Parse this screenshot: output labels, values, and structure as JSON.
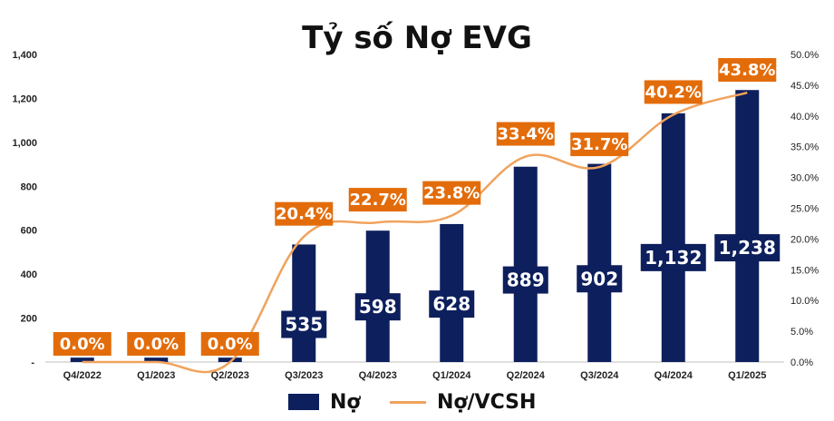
{
  "chart_data": {
    "type": "bar+line",
    "title": "Tỷ số Nợ EVG",
    "categories": [
      "Q4/2022",
      "Q1/2023",
      "Q2/2023",
      "Q3/2023",
      "Q4/2023",
      "Q1/2024",
      "Q2/2024",
      "Q3/2024",
      "Q4/2024",
      "Q1/2025"
    ],
    "series": [
      {
        "name": "Nợ",
        "type": "bar",
        "axis": "left",
        "values": [
          20,
          20,
          20,
          535,
          598,
          628,
          889,
          902,
          1132,
          1238
        ],
        "labels": [
          "",
          "",
          "",
          "535",
          "598",
          "628",
          "889",
          "902",
          "1,132",
          "1,238"
        ],
        "color": "#0d1f5c"
      },
      {
        "name": "Nợ/VCSH",
        "type": "line",
        "axis": "right",
        "values": [
          0.0,
          0.0,
          0.0,
          20.4,
          22.7,
          23.8,
          33.4,
          31.7,
          40.2,
          43.8
        ],
        "labels": [
          "0.0%",
          "0.0%",
          "0.0%",
          "20.4%",
          "22.7%",
          "23.8%",
          "33.4%",
          "31.7%",
          "40.2%",
          "43.8%"
        ],
        "color": "#f0a35e",
        "label_bg": "#e36c0a"
      }
    ],
    "y_left": {
      "lim": [
        0,
        1400
      ],
      "ticks": [
        "-",
        "200",
        "400",
        "600",
        "800",
        "1,000",
        "1,200",
        "1,400"
      ]
    },
    "y_right": {
      "lim": [
        0,
        50
      ],
      "ticks": [
        "0.0%",
        "5.0%",
        "10.0%",
        "15.0%",
        "20.0%",
        "25.0%",
        "30.0%",
        "35.0%",
        "40.0%",
        "45.0%",
        "50.0%"
      ]
    },
    "grid": false,
    "legend": {
      "placement": "bottom",
      "items": [
        "Nợ",
        "Nợ/VCSH"
      ]
    }
  }
}
